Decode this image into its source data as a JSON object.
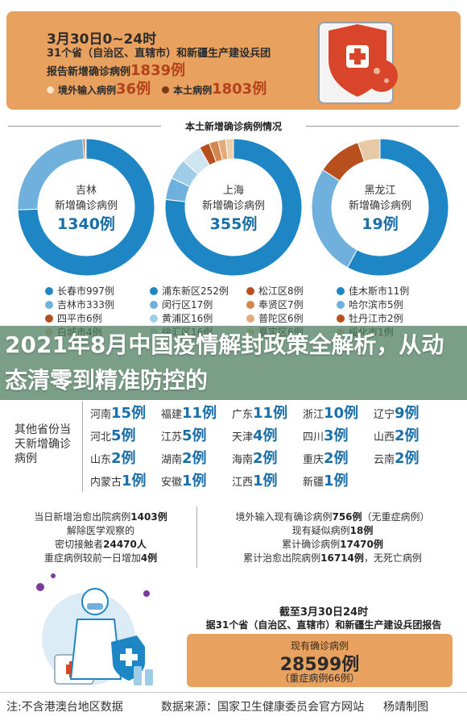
{
  "header": {
    "line1": "3月30日0~24时",
    "line2": "31个省（自治区、直辖市）和新疆生产建设兵团",
    "line3_prefix": "报告新增确诊病例",
    "line3_num": "1839例",
    "imported_label": "境外输入病例",
    "imported_num": "36例",
    "local_label": "本土病例",
    "local_num": "1803例"
  },
  "section_title": "本土新增确诊病例情况",
  "donuts": [
    {
      "name": "吉林",
      "sub": "新增确诊病例",
      "num": "1340例",
      "legend": [
        {
          "label": "长春市997例",
          "color": "#1f86c6"
        },
        {
          "label": "吉林市333例",
          "color": "#6fb1dc"
        },
        {
          "label": "四平市6例",
          "color": "#b84f1e"
        },
        {
          "label": "白城市4例",
          "color": "#e8c9a5"
        }
      ],
      "chart_data": {
        "type": "pie",
        "categories": [
          "长春市",
          "吉林市",
          "四平市",
          "白城市"
        ],
        "values": [
          997,
          333,
          6,
          4
        ]
      }
    },
    {
      "name": "上海",
      "sub": "新增确诊病例",
      "num": "355例",
      "legend": [
        {
          "label": "浦东新区252例",
          "color": "#1f86c6"
        },
        {
          "label": "闵行区17例",
          "color": "#6fb1dc"
        },
        {
          "label": "黄浦区16例",
          "color": "#9fcde8"
        },
        {
          "label": "徐汇区16例",
          "color": "#cfe5f2"
        },
        {
          "label": "松江区8例",
          "color": "#b84f1e"
        },
        {
          "label": "奉贤区7例",
          "color": "#d2874f"
        },
        {
          "label": "普陀区6例",
          "color": "#e3ab7b"
        },
        {
          "label": "嘉定区6例",
          "color": "#efcfa9"
        }
      ],
      "chart_data": {
        "type": "pie",
        "categories": [
          "浦东新区",
          "闵行区",
          "黄浦区",
          "徐汇区",
          "松江区",
          "奉贤区",
          "普陀区",
          "嘉定区"
        ],
        "values": [
          252,
          17,
          16,
          16,
          8,
          7,
          6,
          6
        ]
      }
    },
    {
      "name": "黑龙江",
      "sub": "新增确诊病例",
      "num": "19例",
      "legend": [
        {
          "label": "佳木斯市11例",
          "color": "#1f86c6"
        },
        {
          "label": "哈尔滨市5例",
          "color": "#6fb1dc"
        },
        {
          "label": "牡丹江市2例",
          "color": "#b84f1e"
        },
        {
          "label": "绥化市1例",
          "color": "#e8c9a5"
        }
      ],
      "chart_data": {
        "type": "pie",
        "categories": [
          "佳木斯市",
          "哈尔滨市",
          "牡丹江市",
          "绥化市"
        ],
        "values": [
          11,
          5,
          2,
          1
        ]
      }
    }
  ],
  "banner": "2021年8月中国疫情解封政策全解析，从动态清零到精准防控的",
  "provinces": {
    "label": "其他省份当天新增确诊病例",
    "rows": [
      [
        {
          "n": "河南",
          "v": "15例"
        },
        {
          "n": "福建",
          "v": "11例"
        },
        {
          "n": "广东",
          "v": "11例"
        },
        {
          "n": "浙江",
          "v": "10例"
        },
        {
          "n": "辽宁",
          "v": "9例"
        }
      ],
      [
        {
          "n": "河北",
          "v": "5例"
        },
        {
          "n": "江苏",
          "v": "5例"
        },
        {
          "n": "天津",
          "v": "4例"
        },
        {
          "n": "四川",
          "v": "3例"
        },
        {
          "n": "山西",
          "v": "2例"
        }
      ],
      [
        {
          "n": "山东",
          "v": "2例"
        },
        {
          "n": "湖南",
          "v": "2例"
        },
        {
          "n": "海南",
          "v": "2例"
        },
        {
          "n": "重庆",
          "v": "2例"
        },
        {
          "n": "云南",
          "v": "2例"
        }
      ],
      [
        {
          "n": "内蒙古",
          "v": "1例"
        },
        {
          "n": "安徽",
          "v": "1例"
        },
        {
          "n": "江西",
          "v": "1例"
        },
        {
          "n": "新疆",
          "v": "1例"
        }
      ]
    ]
  },
  "stats_left": [
    {
      "t": "当日新增治愈出院病例",
      "b": "1403例"
    },
    {
      "t": "解除医学观察的",
      "b": ""
    },
    {
      "t": "密切接触者",
      "b": "24470人"
    },
    {
      "t": "重症病例较前一日增加",
      "b": "4例"
    }
  ],
  "stats_right": [
    {
      "t": "境外输入现有确诊病例",
      "b": "756例",
      "s": "（无重症病例）"
    },
    {
      "t": "现有疑似病例",
      "b": "18例",
      "s": ""
    },
    {
      "t": "累计确诊病例",
      "b": "17470例",
      "s": ""
    },
    {
      "t": "累计治愈出院病例",
      "b": "16714例",
      "s": "，无死亡病例"
    }
  ],
  "deadline1": "截至3月30日24时",
  "deadline2": "据31个省（自治区、直辖市）和新疆生产建设兵团报告",
  "current": {
    "label": "现有确诊病例",
    "num": "28599例",
    "sub": "（重症病例66例）"
  },
  "footer": {
    "note": "注:不含港澳台地区数据",
    "source": "数据来源：国家卫生健康委员会官方网站",
    "credit": "杨靖制图"
  }
}
